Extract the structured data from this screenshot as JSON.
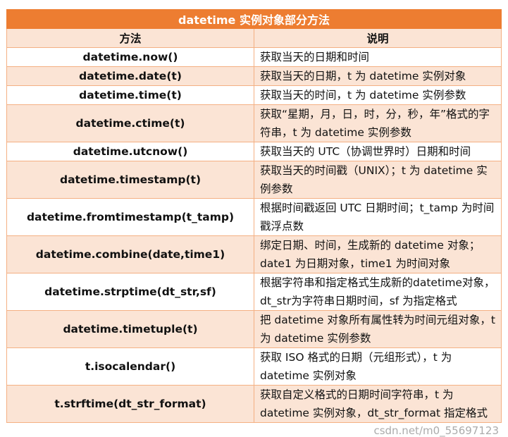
{
  "title": "datetime 实例对象部分方法",
  "headers": {
    "method": "方法",
    "description": "说明"
  },
  "colors": {
    "title_bg": "#ED7D31",
    "band": "#FBE4D5",
    "border": "#F4B083"
  },
  "rows": [
    {
      "method": "datetime.now()",
      "description": "获取当天的日期和时间"
    },
    {
      "method": "datetime.date(t)",
      "description": "获取当天的日期，t 为 datetime 实例对象"
    },
    {
      "method": "datetime.time(t)",
      "description": "获取当天的时间，t 为 datetime 实例参数"
    },
    {
      "method": "datetime.ctime(t)",
      "description": "获取“星期，月，日，时，分，秒，年”格式的字符串，t 为 datetime 实例参数"
    },
    {
      "method": "datetime.utcnow()",
      "description": "获取当天的 UTC（协调世界时）日期和时间"
    },
    {
      "method": "datetime.timestamp(t)",
      "description": "获取当天的时间戳（UNIX）；t 为 datetime 实例参数"
    },
    {
      "method": "datetime.fromtimestamp(t_tamp)",
      "description": "根据时间戳返回 UTC 日期时间；t_tamp 为时间戳浮点数"
    },
    {
      "method": "datetime.combine(date,time1)",
      "description": "绑定日期、时间，生成新的 datetime 对象；date1 为日期对象，time1 为时间对象"
    },
    {
      "method": "datetime.strptime(dt_str,sf)",
      "description": "根据字符串和指定格式生成新的datetime对象，dt_str为字符串日期时间，sf 为指定格式"
    },
    {
      "method": "datetime.timetuple(t)",
      "description": "把 datetime 对象所有属性转为时间元组对象，t 为 datetime 实例参数"
    },
    {
      "method": "t.isocalendar()",
      "description": "获取 ISO 格式的日期（元组形式），t 为 datetime 实例对象"
    },
    {
      "method": "t.strftime(dt_str_format)",
      "description": "获取自定义格式的日期时间字符串，t 为 datetime 实例对象，dt_str_format 指定格式"
    }
  ],
  "watermark": "csdn.net/m0_55697123"
}
